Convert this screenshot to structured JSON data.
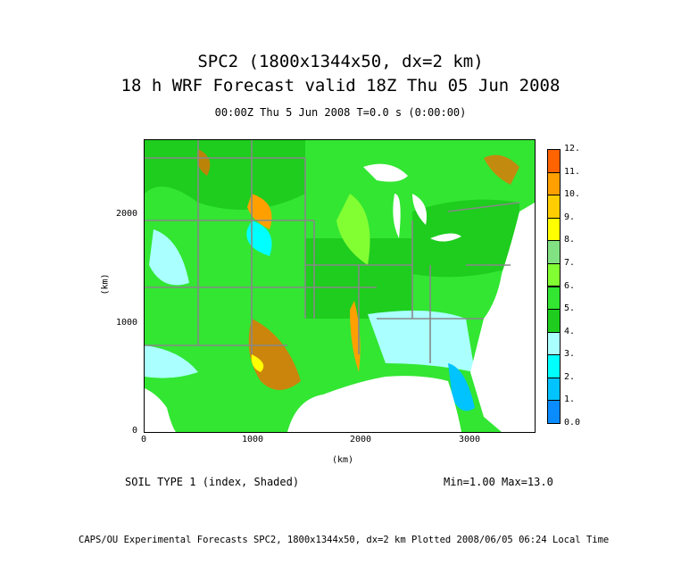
{
  "title_line1": "SPC2 (1800x1344x50, dx=2 km)",
  "title_line2": "18 h WRF Forecast valid 18Z Thu 05 Jun 2008",
  "subtitle": "00:00Z Thu  5 Jun 2008    T=0.0 s (0:00:00)",
  "x_axis": {
    "label": "(km)",
    "ticks": [
      "0",
      "1000",
      "2000",
      "3000"
    ],
    "range": [
      0,
      3600
    ]
  },
  "y_axis": {
    "label": "(km)",
    "ticks": [
      "0",
      "1000",
      "2000"
    ],
    "range": [
      0,
      2688
    ]
  },
  "colorbar": {
    "labels": [
      "0.0",
      "1.",
      "2.",
      "3.",
      "4.",
      "5.",
      "6.",
      "7.",
      "8.",
      "9.",
      "10.",
      "11.",
      "12."
    ],
    "colors": [
      "#0a8cff",
      "#00c3ff",
      "#00ffff",
      "#aaffff",
      "#1ecd1e",
      "#32e632",
      "#82ff32",
      "#82e182",
      "#ffff00",
      "#ffcd00",
      "#ffa000",
      "#ff6400"
    ]
  },
  "field_label": "SOIL TYPE 1 (index, Shaded)",
  "minmax": "Min=1.00 Max=13.0",
  "footer": "CAPS/OU Experimental Forecasts  SPC2, 1800x1344x50, dx=2 km  Plotted 2008/06/05 06:24 Local Time"
}
